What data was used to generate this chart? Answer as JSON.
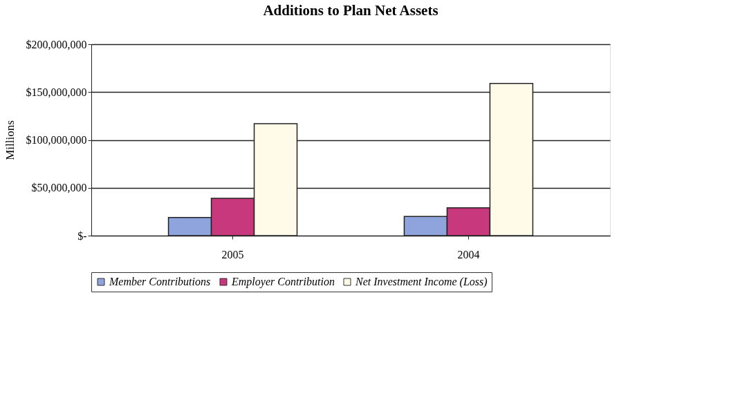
{
  "chart_data": {
    "type": "bar",
    "title": "Additions to Plan Net Assets",
    "ylabel": "Millions",
    "categories": [
      "2005",
      "2004"
    ],
    "series": [
      {
        "name": "Member Contributions",
        "color": "#8fa3dc",
        "values": [
          19000000,
          20000000
        ]
      },
      {
        "name": "Employer Contribution",
        "color": "#c8387c",
        "values": [
          39000000,
          29000000
        ]
      },
      {
        "name": "Net Investment Income (Loss)",
        "color": "#fffbe8",
        "values": [
          117000000,
          159000000
        ]
      }
    ],
    "ylim": [
      0,
      200000000
    ],
    "yticks": [
      {
        "value": 0,
        "label": "$-"
      },
      {
        "value": 50000000,
        "label": "$50,000,000"
      },
      {
        "value": 100000000,
        "label": "$100,000,000"
      },
      {
        "value": 150000000,
        "label": "$150,000,000"
      },
      {
        "value": 200000000,
        "label": "$200,000,000"
      }
    ],
    "grid": "y",
    "legend": "bottom"
  }
}
